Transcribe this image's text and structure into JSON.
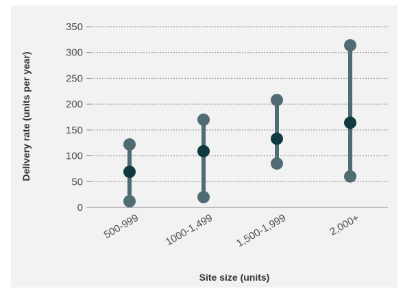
{
  "chart_data": {
    "type": "range",
    "xlabel": "Site size (units)",
    "ylabel": "Delivery rate (units per year)",
    "ylim": [
      0,
      350
    ],
    "yticks": [
      0,
      50,
      100,
      150,
      200,
      250,
      300,
      350
    ],
    "categories": [
      "500-999",
      "1000-1,499",
      "1,500-1,999",
      "2,000+"
    ],
    "series": [
      {
        "values": [
          12,
          20,
          85,
          60
        ]
      },
      {
        "values": [
          69,
          109,
          133,
          164
        ]
      },
      {
        "values": [
          122,
          170,
          208,
          314
        ]
      }
    ],
    "grid": true,
    "colors": {
      "range": "#4f6b73",
      "median": "#0f3a3f",
      "grid": "#8c8c8c",
      "background": "#f2f2f2"
    }
  }
}
